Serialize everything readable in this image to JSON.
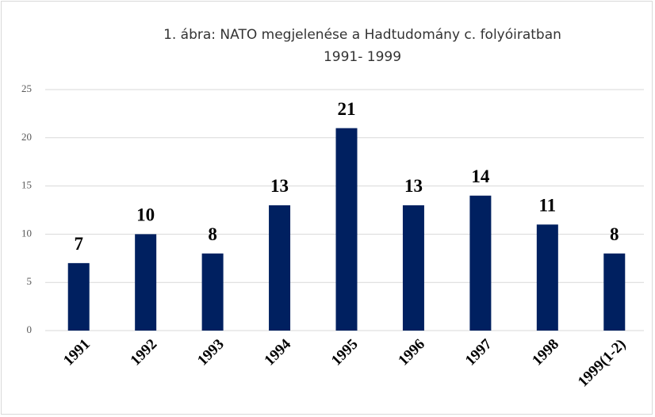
{
  "chart_data": {
    "type": "bar",
    "title": "1. ábra: NATO megjelenése a Hadtudomány c. folyóiratban",
    "subtitle": "1991- 1999",
    "categories": [
      "1991",
      "1992",
      "1993",
      "1994",
      "1995",
      "1996",
      "1997",
      "1998",
      "1999(1-2)"
    ],
    "values": [
      7,
      10,
      8,
      13,
      21,
      13,
      14,
      11,
      8
    ],
    "color": "#002060",
    "ylim": [
      0,
      25
    ],
    "yticks": [
      0,
      5,
      10,
      15,
      20,
      25
    ],
    "grid": true
  }
}
